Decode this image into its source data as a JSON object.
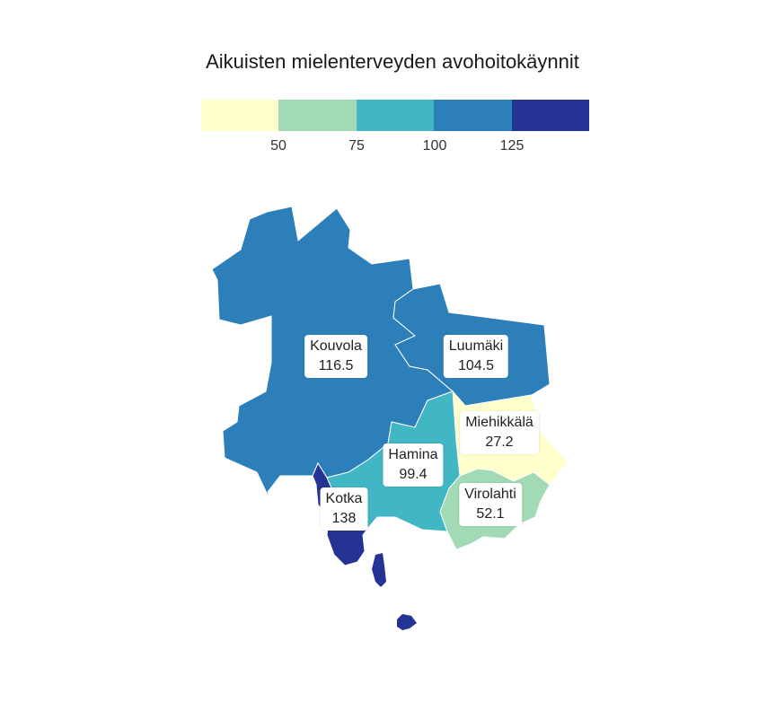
{
  "title": "Aikuisten mielenterveyden avohoitokäynnit",
  "legend": {
    "colors": [
      "#ffffcc",
      "#a1dab4",
      "#41b6c4",
      "#2c7fb8",
      "#253494"
    ],
    "ticks": [
      "50",
      "75",
      "100",
      "125"
    ]
  },
  "regions": [
    {
      "name": "Kouvola",
      "value": "116.5",
      "color": "#2c7fb8"
    },
    {
      "name": "Luumäki",
      "value": "104.5",
      "color": "#2c7fb8"
    },
    {
      "name": "Miehikkälä",
      "value": "27.2",
      "color": "#ffffcc"
    },
    {
      "name": "Hamina",
      "value": "99.4",
      "color": "#41b6c4"
    },
    {
      "name": "Virolahti",
      "value": "52.1",
      "color": "#a1dab4"
    },
    {
      "name": "Kotka",
      "value": "138",
      "color": "#253494"
    }
  ]
}
